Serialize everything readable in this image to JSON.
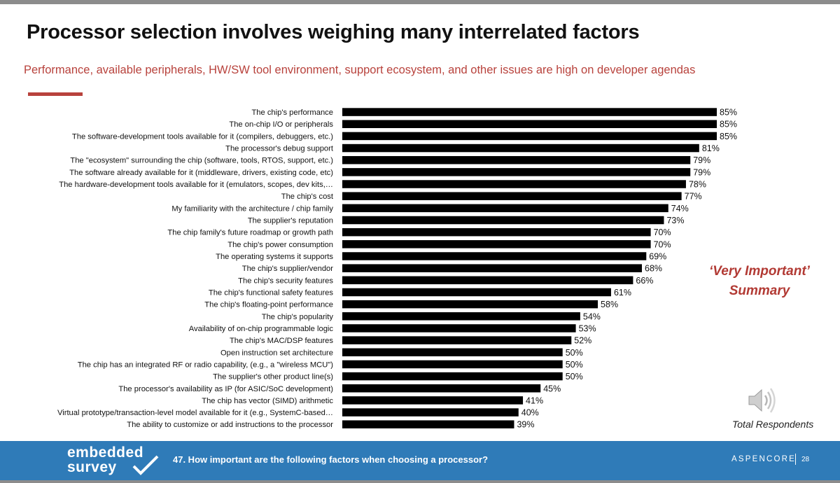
{
  "slide": {
    "title": "Processor selection involves weighing many interrelated factors",
    "subtitle": "Performance, available peripherals, HW/SW tool environment, support ecosystem, and other issues are high on developer agendas",
    "side_note_line1": "‘Very Important’",
    "side_note_line2": "Summary",
    "respondents_label": "Total Respondents",
    "accent_color": "#b8423c",
    "bar_color": "#000000"
  },
  "footer": {
    "logo_line1": "embedded",
    "logo_line2": "survey",
    "question": "47. How important are the following factors when choosing a processor?",
    "brand": "ASPENCORE",
    "page_number": "28",
    "background_color": "#2f7bb8"
  },
  "chart_data": {
    "type": "bar",
    "orientation": "horizontal",
    "categories": [
      "The chip's performance",
      "The on-chip I/O or peripherals",
      "The software-development tools available for it (compilers, debuggers, etc.)",
      "The processor's debug support",
      "The \"ecosystem\" surrounding the chip (software, tools, RTOS, support, etc.)",
      "The software already available for it (middleware, drivers, existing code, etc)",
      "The hardware-development tools available for it (emulators, scopes, dev kits,…",
      "The chip's cost",
      "My familiarity with the architecture / chip family",
      "The supplier's reputation",
      "The chip family's future roadmap or growth path",
      "The chip's power consumption",
      "The operating systems it supports",
      "The chip's supplier/vendor",
      "The chip's security features",
      "The chip's functional safety features",
      "The chip's floating-point performance",
      "The chip's popularity",
      "Availability of on-chip programmable logic",
      "The chip's MAC/DSP features",
      "Open instruction set architecture",
      "The chip has an integrated RF or radio capability, (e.g., a \"wireless MCU\")",
      "The supplier's other product line(s)",
      "The processor's availability as IP (for ASIC/SoC development)",
      "The chip has vector (SIMD) arithmetic",
      "Virtual prototype/transaction-level model available for it (e.g., SystemC-based…",
      "The ability to customize or add instructions to the processor"
    ],
    "values": [
      85,
      85,
      85,
      81,
      79,
      79,
      78,
      77,
      74,
      73,
      70,
      70,
      69,
      68,
      66,
      61,
      58,
      54,
      53,
      52,
      50,
      50,
      50,
      45,
      41,
      40,
      39
    ],
    "data_labels": [
      "85%",
      "85%",
      "85%",
      "81%",
      "79%",
      "79%",
      "78%",
      "77%",
      "74%",
      "73%",
      "70%",
      "70%",
      "69%",
      "68%",
      "66%",
      "61%",
      "58%",
      "54%",
      "53%",
      "52%",
      "50%",
      "50%",
      "50%",
      "45%",
      "41%",
      "40%",
      "39%"
    ],
    "xlim": [
      0,
      100
    ],
    "grid": false,
    "legend": "none"
  }
}
